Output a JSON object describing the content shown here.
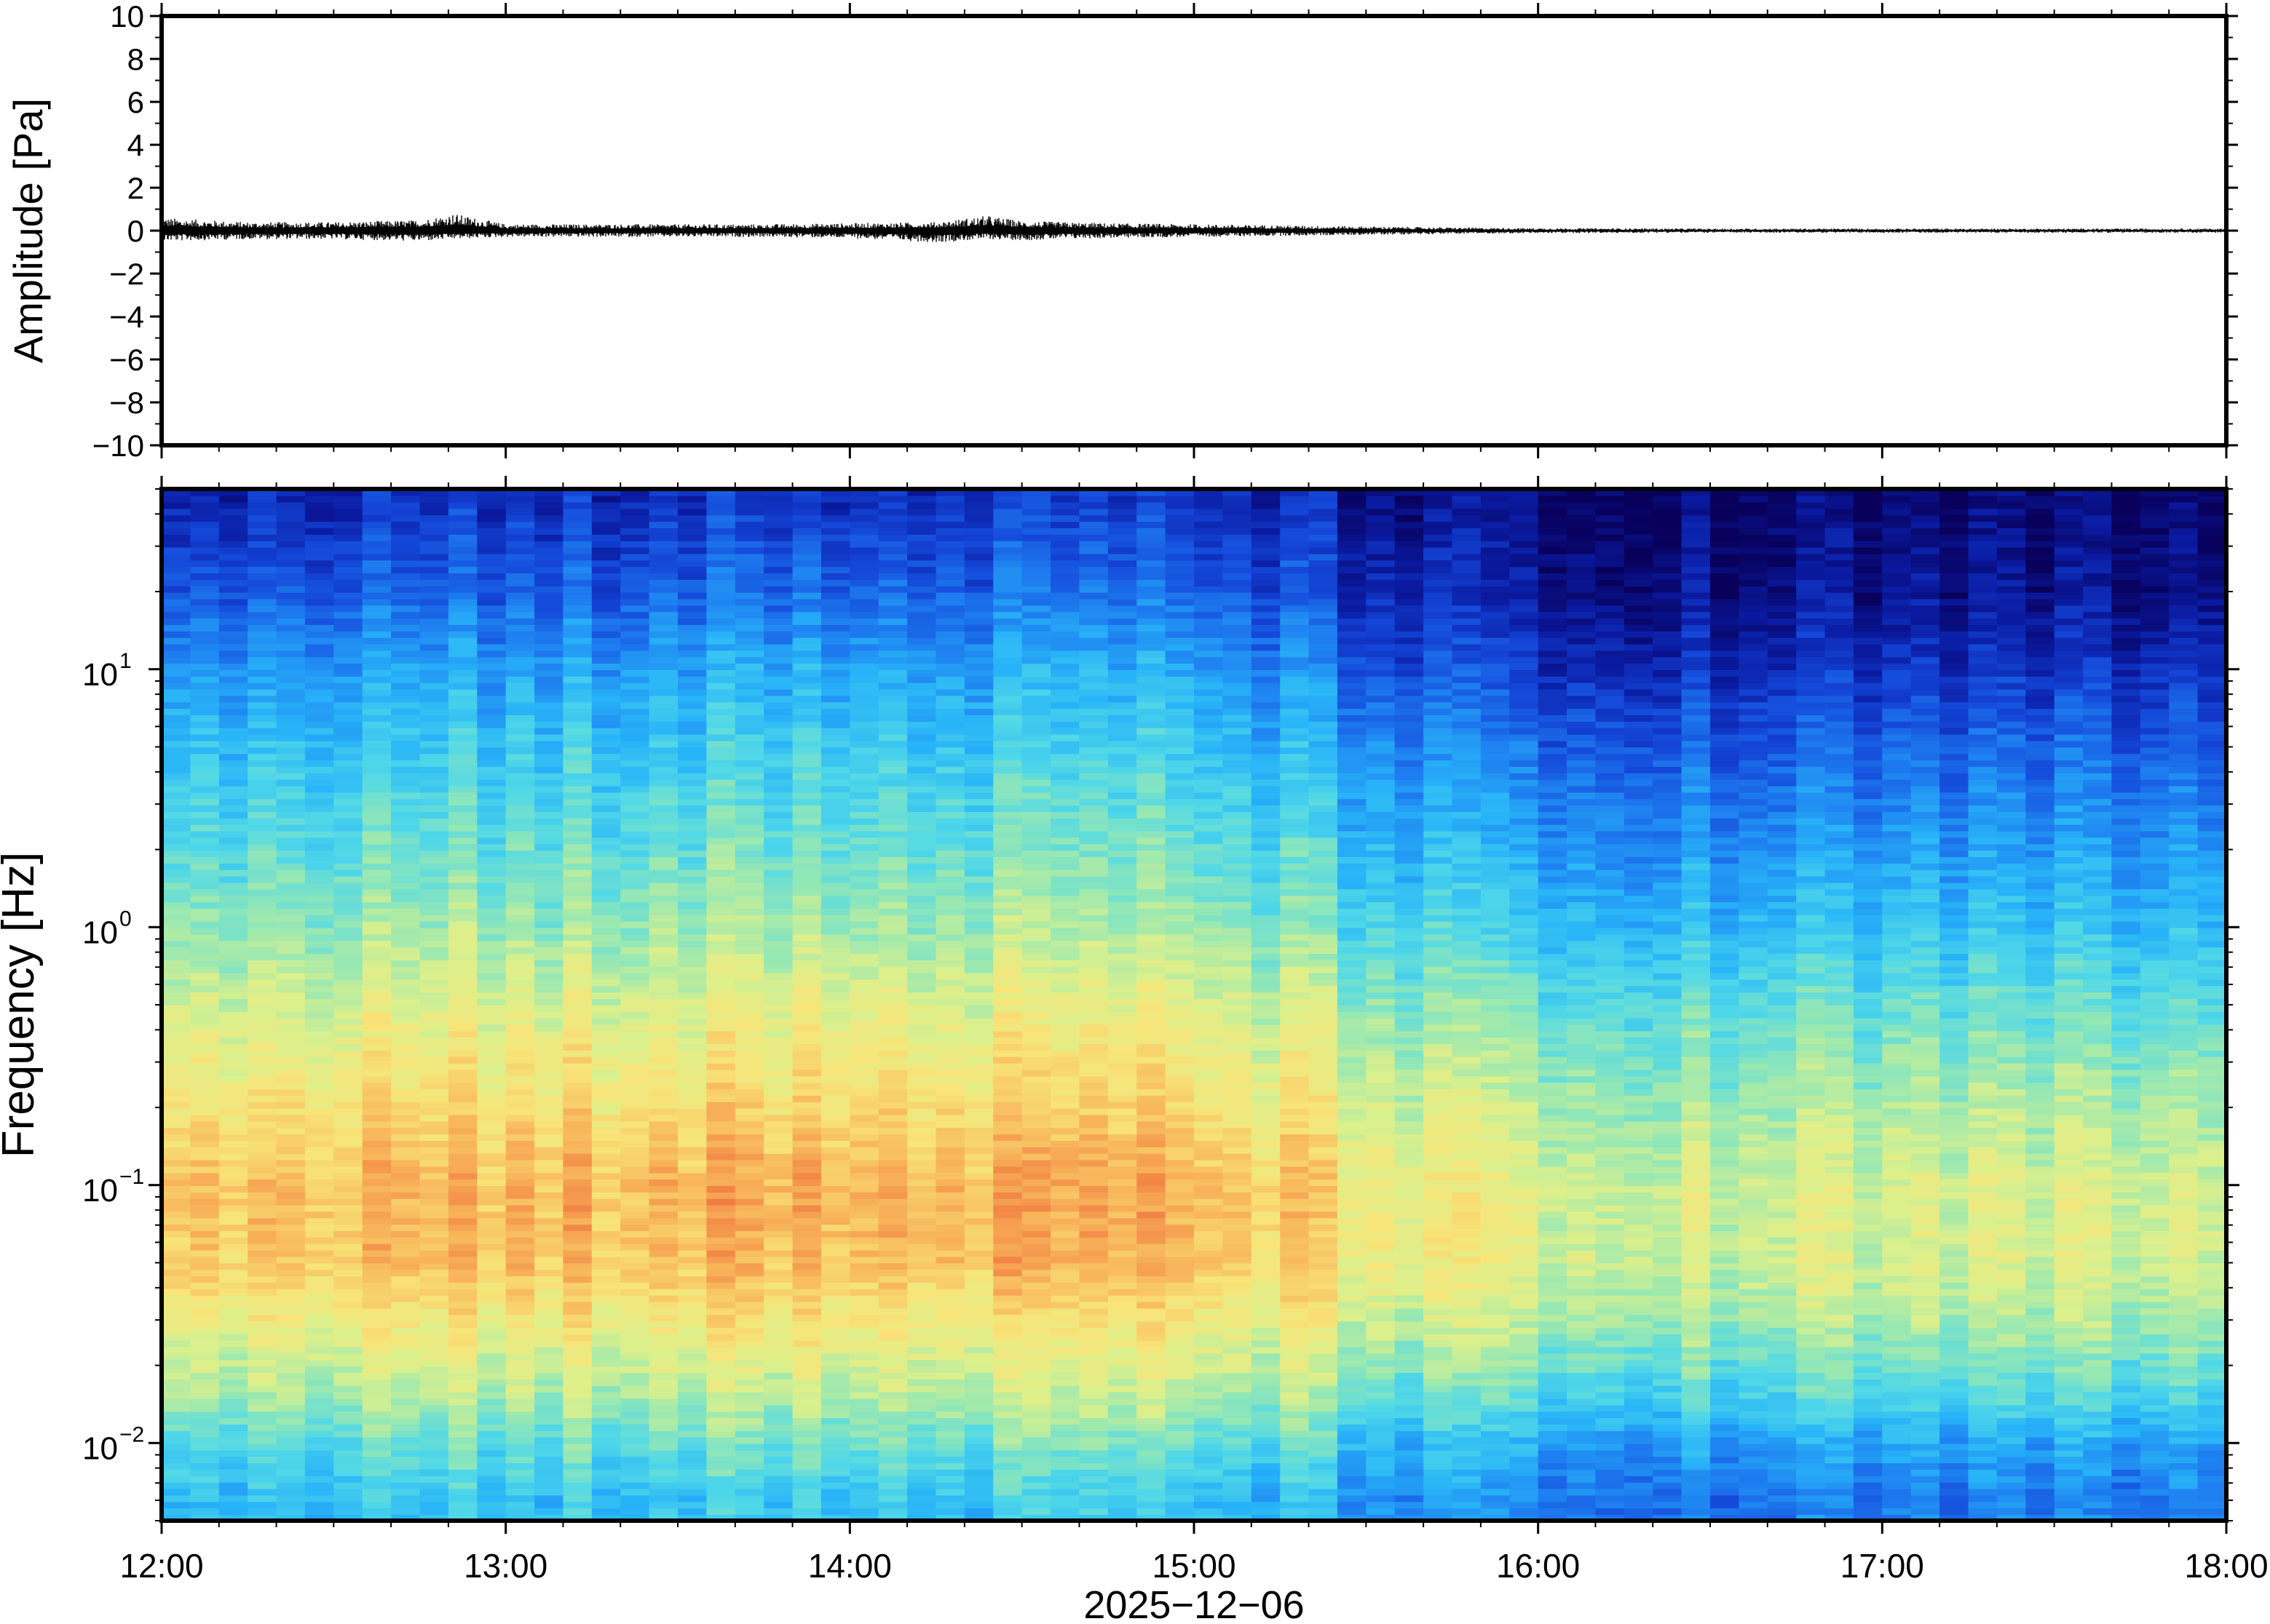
{
  "chart_data": [
    {
      "type": "line",
      "panel": "amplitude-waveform",
      "title": "",
      "xlabel": "",
      "ylabel": "Amplitude [Pa]",
      "ylim": [
        -10,
        10
      ],
      "yticks": [
        10,
        8,
        6,
        4,
        2,
        0,
        -2,
        -4,
        -6,
        -8,
        -10
      ],
      "ytick_labels": [
        "10",
        "8",
        "6",
        "4",
        "2",
        "0",
        "−2",
        "−4",
        "−6",
        "−8",
        "−10"
      ],
      "x_range": [
        "12:00",
        "18:00"
      ],
      "series": [
        {
          "envelope_time_hours": [
            12.0,
            12.25,
            12.5,
            12.75,
            12.85,
            13.0,
            13.25,
            13.5,
            13.75,
            14.0,
            14.25,
            14.4,
            14.5,
            14.75,
            15.0,
            15.25,
            15.5,
            15.75,
            16.0,
            16.5,
            17.0,
            17.5,
            18.0
          ],
          "envelope_max_pa": [
            0.6,
            0.4,
            0.4,
            0.5,
            0.8,
            0.3,
            0.3,
            0.3,
            0.3,
            0.35,
            0.4,
            0.7,
            0.45,
            0.35,
            0.3,
            0.25,
            0.2,
            0.15,
            0.12,
            0.1,
            0.1,
            0.1,
            0.1
          ],
          "envelope_min_pa": [
            -0.5,
            -0.4,
            -0.4,
            -0.5,
            -0.4,
            -0.3,
            -0.3,
            -0.3,
            -0.3,
            -0.35,
            -0.55,
            -0.4,
            -0.45,
            -0.35,
            -0.3,
            -0.25,
            -0.2,
            -0.15,
            -0.12,
            -0.1,
            -0.1,
            -0.1,
            -0.1
          ]
        }
      ],
      "color": "#000000"
    },
    {
      "type": "heatmap",
      "panel": "spectrogram",
      "title": "",
      "xlabel": "2025−12−06",
      "ylabel": "Frequency [Hz]",
      "yscale": "log",
      "ylim_hz": [
        0.005,
        50
      ],
      "yticks_hz": [
        0.01,
        0.1,
        1,
        10
      ],
      "ytick_labels": [
        {
          "base": "10",
          "exp": "−2"
        },
        {
          "base": "10",
          "exp": "−1"
        },
        {
          "base": "10",
          "exp": "0"
        },
        {
          "base": "10",
          "exp": "1"
        }
      ],
      "x_categories": [
        "12:00",
        "13:00",
        "14:00",
        "15:00",
        "16:00",
        "17:00",
        "18:00"
      ],
      "colormap": "jet",
      "palette": [
        "#08005a",
        "#0a1aa0",
        "#1446d8",
        "#1e7ef0",
        "#28b4f8",
        "#50d8e8",
        "#96e8b4",
        "#dcf08c",
        "#f8e478",
        "#f8b45a",
        "#f07840"
      ],
      "relative_level_profile": {
        "frequency_hz": [
          0.006,
          0.01,
          0.015,
          0.03,
          0.05,
          0.1,
          0.2,
          0.5,
          1,
          2,
          5,
          10,
          20,
          45
        ],
        "level_12_to_15h": [
          0.45,
          0.55,
          0.65,
          0.78,
          0.88,
          0.9,
          0.82,
          0.72,
          0.62,
          0.55,
          0.46,
          0.38,
          0.26,
          0.16
        ],
        "level_15_to_18h": [
          0.28,
          0.36,
          0.48,
          0.62,
          0.68,
          0.68,
          0.62,
          0.52,
          0.42,
          0.34,
          0.24,
          0.14,
          0.06,
          0.02
        ]
      }
    }
  ],
  "axes": {
    "x_tick_labels": [
      "12:00",
      "13:00",
      "14:00",
      "15:00",
      "16:00",
      "17:00",
      "18:00"
    ]
  }
}
